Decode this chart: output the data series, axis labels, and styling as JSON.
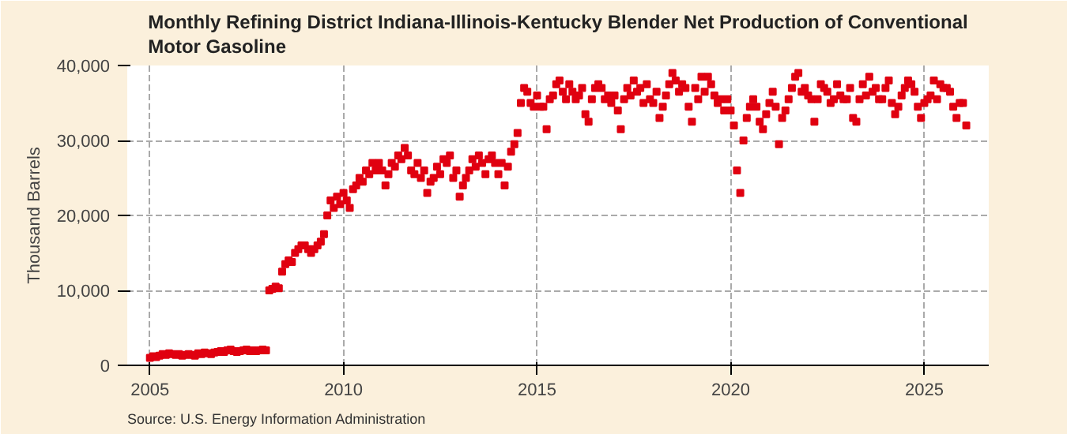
{
  "chart_data": {
    "type": "scatter",
    "title": "Monthly Refining District Indiana-Illinois-Kentucky Blender Net Production of Conventional Motor Gasoline",
    "ylabel": "Thousand Barrels",
    "annotations": [
      "Source: U.S. Energy Information Administration"
    ],
    "marker": "square",
    "grid": true,
    "xlim": [
      "2004-06",
      "2026-09"
    ],
    "xticks": [
      {
        "value": "2005",
        "label": "2005"
      },
      {
        "value": "2010",
        "label": "2010"
      },
      {
        "value": "2015",
        "label": "2015"
      },
      {
        "value": "2020",
        "label": "2020"
      },
      {
        "value": "2025",
        "label": "2025"
      }
    ],
    "ylim": [
      0,
      40000
    ],
    "yticks": [
      {
        "value": 0,
        "label": "0"
      },
      {
        "value": 10000,
        "label": "10,000"
      },
      {
        "value": 20000,
        "label": "20,000"
      },
      {
        "value": 30000,
        "label": "30,000"
      },
      {
        "value": 40000,
        "label": "40,000"
      }
    ],
    "series": [
      {
        "color": "#e00010",
        "x": [
          "2005-01",
          "2005-02",
          "2005-03",
          "2005-04",
          "2005-05",
          "2005-06",
          "2005-07",
          "2005-08",
          "2005-09",
          "2005-10",
          "2005-11",
          "2005-12",
          "2006-01",
          "2006-02",
          "2006-03",
          "2006-04",
          "2006-05",
          "2006-06",
          "2006-07",
          "2006-08",
          "2006-09",
          "2006-10",
          "2006-11",
          "2006-12",
          "2007-01",
          "2007-02",
          "2007-03",
          "2007-04",
          "2007-05",
          "2007-06",
          "2007-07",
          "2007-08",
          "2007-09",
          "2007-10",
          "2007-11",
          "2007-12",
          "2008-01",
          "2008-02",
          "2008-03",
          "2008-04",
          "2008-05",
          "2008-06",
          "2008-07",
          "2008-08",
          "2008-09",
          "2008-10",
          "2008-11",
          "2008-12",
          "2009-01",
          "2009-02",
          "2009-03",
          "2009-04",
          "2009-05",
          "2009-06",
          "2009-07",
          "2009-08",
          "2009-09",
          "2009-10",
          "2009-11",
          "2009-12",
          "2010-01",
          "2010-02",
          "2010-03",
          "2010-04",
          "2010-05",
          "2010-06",
          "2010-07",
          "2010-08",
          "2010-09",
          "2010-10",
          "2010-11",
          "2010-12",
          "2011-01",
          "2011-02",
          "2011-03",
          "2011-04",
          "2011-05",
          "2011-06",
          "2011-07",
          "2011-08",
          "2011-09",
          "2011-10",
          "2011-11",
          "2011-12",
          "2012-01",
          "2012-02",
          "2012-03",
          "2012-04",
          "2012-05",
          "2012-06",
          "2012-07",
          "2012-08",
          "2012-09",
          "2012-10",
          "2012-11",
          "2012-12",
          "2013-01",
          "2013-02",
          "2013-03",
          "2013-04",
          "2013-05",
          "2013-06",
          "2013-07",
          "2013-08",
          "2013-09",
          "2013-10",
          "2013-11",
          "2013-12",
          "2014-01",
          "2014-02",
          "2014-03",
          "2014-04",
          "2014-05",
          "2014-06",
          "2014-07",
          "2014-08",
          "2014-09",
          "2014-10",
          "2014-11",
          "2014-12",
          "2015-01",
          "2015-02",
          "2015-03",
          "2015-04",
          "2015-05",
          "2015-06",
          "2015-07",
          "2015-08",
          "2015-09",
          "2015-10",
          "2015-11",
          "2015-12",
          "2016-01",
          "2016-02",
          "2016-03",
          "2016-04",
          "2016-05",
          "2016-06",
          "2016-07",
          "2016-08",
          "2016-09",
          "2016-10",
          "2016-11",
          "2016-12",
          "2017-01",
          "2017-02",
          "2017-03",
          "2017-04",
          "2017-05",
          "2017-06",
          "2017-07",
          "2017-08",
          "2017-09",
          "2017-10",
          "2017-11",
          "2017-12",
          "2018-01",
          "2018-02",
          "2018-03",
          "2018-04",
          "2018-05",
          "2018-06",
          "2018-07",
          "2018-08",
          "2018-09",
          "2018-10",
          "2018-11",
          "2018-12",
          "2019-01",
          "2019-02",
          "2019-03",
          "2019-04",
          "2019-05",
          "2019-06",
          "2019-07",
          "2019-08",
          "2019-09",
          "2019-10",
          "2019-11",
          "2019-12",
          "2020-01",
          "2020-02",
          "2020-03",
          "2020-04",
          "2020-05",
          "2020-06",
          "2020-07",
          "2020-08",
          "2020-09",
          "2020-10",
          "2020-11",
          "2020-12",
          "2021-01",
          "2021-02",
          "2021-03",
          "2021-04",
          "2021-05",
          "2021-06",
          "2021-07",
          "2021-08",
          "2021-09",
          "2021-10",
          "2021-11",
          "2021-12",
          "2022-01",
          "2022-02",
          "2022-03",
          "2022-04",
          "2022-05",
          "2022-06",
          "2022-07",
          "2022-08",
          "2022-09",
          "2022-10",
          "2022-11",
          "2022-12",
          "2023-01",
          "2023-02",
          "2023-03",
          "2023-04",
          "2023-05",
          "2023-06",
          "2023-07",
          "2023-08",
          "2023-09",
          "2023-10",
          "2023-11",
          "2023-12",
          "2024-01",
          "2024-02",
          "2024-03",
          "2024-04",
          "2024-05",
          "2024-06",
          "2024-07",
          "2024-08",
          "2024-09",
          "2024-10",
          "2024-11",
          "2024-12",
          "2025-01",
          "2025-02",
          "2025-03",
          "2025-04",
          "2025-05",
          "2025-06",
          "2025-07",
          "2025-08",
          "2025-09",
          "2025-10",
          "2025-11",
          "2025-12",
          "2026-01",
          "2026-02"
        ],
        "values": [
          1000,
          1200,
          1100,
          1300,
          1500,
          1400,
          1600,
          1500,
          1400,
          1500,
          1300,
          1400,
          1500,
          1400,
          1300,
          1600,
          1500,
          1700,
          1600,
          1500,
          1700,
          1800,
          1900,
          1800,
          2000,
          2100,
          1900,
          1800,
          1900,
          2000,
          2100,
          1900,
          2000,
          1900,
          2000,
          2100,
          2000,
          10000,
          10200,
          10500,
          10300,
          12500,
          13500,
          14000,
          13800,
          15000,
          15500,
          16000,
          16000,
          15500,
          15000,
          15500,
          16000,
          16500,
          17500,
          20000,
          22000,
          21000,
          22500,
          21500,
          23000,
          22000,
          21000,
          23500,
          24000,
          25000,
          24500,
          26000,
          25500,
          27000,
          26000,
          27000,
          26000,
          24000,
          25500,
          27000,
          26500,
          28000,
          27500,
          29000,
          28000,
          26000,
          25500,
          27000,
          25000,
          26000,
          23000,
          24500,
          25000,
          26500,
          25500,
          27500,
          27000,
          28000,
          25000,
          26000,
          22500,
          24000,
          25000,
          26000,
          27500,
          26500,
          28000,
          27000,
          25500,
          27500,
          28000,
          27000,
          25500,
          27000,
          24000,
          26500,
          28500,
          29500,
          31000,
          35000,
          37000,
          36500,
          35000,
          34500,
          36000,
          34500,
          34500,
          31500,
          35500,
          36000,
          37500,
          38000,
          36500,
          35500,
          37500,
          36500,
          35500,
          36000,
          37000,
          33500,
          32500,
          35500,
          37000,
          37500,
          37000,
          35500,
          36000,
          35000,
          36000,
          34000,
          31500,
          35500,
          37000,
          36000,
          38000,
          36500,
          37000,
          35000,
          37500,
          35500,
          35000,
          36500,
          33000,
          34500,
          36000,
          37500,
          39000,
          38000,
          36500,
          37500,
          37000,
          34500,
          32500,
          37000,
          35500,
          38500,
          36500,
          38500,
          37500,
          36000,
          35000,
          35500,
          34000,
          35500,
          34000,
          32000,
          26000,
          23000,
          30000,
          33000,
          34500,
          35500,
          34500,
          32500,
          31500,
          33500,
          35000,
          36500,
          34500,
          29500,
          33000,
          34000,
          35500,
          37000,
          38500,
          39000,
          36500,
          37000,
          36000,
          35500,
          32500,
          35500,
          37500,
          37000,
          36500,
          35000,
          35500,
          37500,
          36000,
          35500,
          35500,
          37000,
          33000,
          32500,
          35500,
          37500,
          36000,
          38500,
          36500,
          37000,
          35500,
          35500,
          37000,
          38000,
          35000,
          33500,
          34500,
          36000,
          37000,
          38000,
          37500,
          36500,
          34500,
          33000,
          35000,
          35500,
          36000,
          38000,
          35500,
          37500,
          37000,
          37000,
          36500,
          34500,
          33000,
          35000,
          35000,
          32000
        ]
      }
    ]
  }
}
